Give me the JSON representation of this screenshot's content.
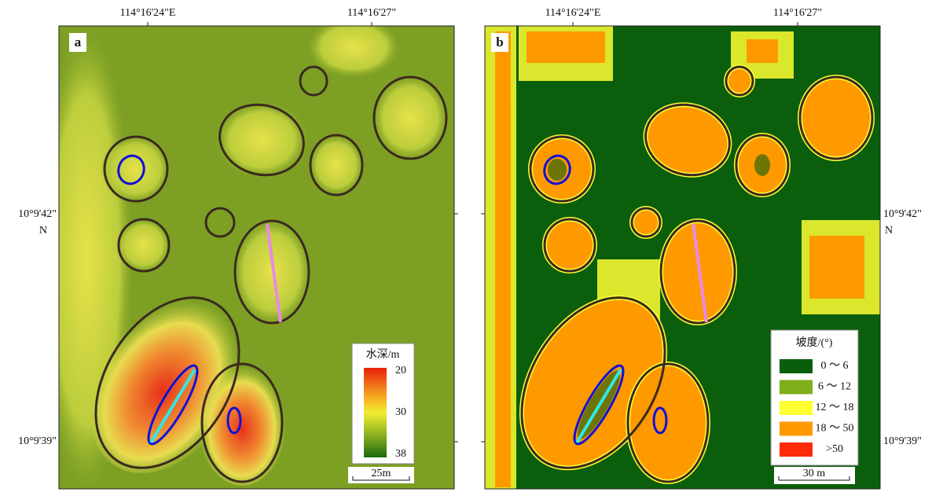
{
  "panels": [
    {
      "label": "a",
      "top_ticks": [
        "114°16'24\"E",
        "114°16'27\""
      ],
      "side_ticks": [
        "10°9'42\"",
        "N",
        "10°9'39\""
      ],
      "legend": {
        "title": "水深/m",
        "ticks": [
          "20",
          "30",
          "38"
        ]
      },
      "scale": "25m"
    },
    {
      "label": "b",
      "top_ticks": [
        "114°16'24\"E",
        "114°16'27\""
      ],
      "side_ticks": [
        "10°9'42\"",
        "N",
        "10°9'39\""
      ],
      "legend": {
        "title": "坡度/(°)",
        "items": [
          {
            "label": "0 ～ 6",
            "color": "#0b5e0b"
          },
          {
            "label": "6 ～ 12",
            "color": "#7fae1a"
          },
          {
            "label": "12 ～ 18",
            "color": "#ffff33"
          },
          {
            "label": "18 ～ 50",
            "color": "#ff9900"
          },
          {
            "label": ">50",
            "color": "#ff2a0a"
          }
        ]
      },
      "scale": "30 m"
    }
  ]
}
